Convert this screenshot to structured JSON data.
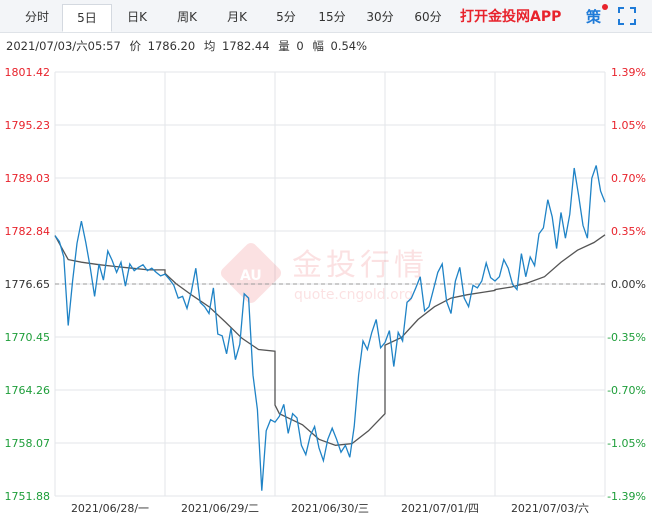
{
  "tabs": [
    {
      "label": "分时"
    },
    {
      "label": "5日"
    },
    {
      "label": "日K"
    },
    {
      "label": "周K"
    },
    {
      "label": "月K"
    },
    {
      "label": "5分"
    },
    {
      "label": "15分"
    },
    {
      "label": "30分"
    },
    {
      "label": "60分"
    }
  ],
  "app_link": "打开金投网APP",
  "strategy_label": "策",
  "info": {
    "datetime": "2021/07/03/六05:57",
    "price_label": "价",
    "price": "1786.20",
    "avg_label": "均",
    "avg": "1782.44",
    "volume_label": "量",
    "volume": "0",
    "change_label": "幅",
    "change": "0.54%"
  },
  "watermark": {
    "brand": "金投行情",
    "url": "quote.cngold.org"
  },
  "colors": {
    "price_line": "#1f83c6",
    "avg_line": "#555555",
    "up": "#e8232c",
    "down": "#1e9e3a",
    "grid": "#e3e6ea"
  },
  "chart_data": {
    "type": "line",
    "title": "",
    "xlabel": "",
    "ylabel": "",
    "prev_close": 1776.65,
    "ylim": [
      1751.88,
      1801.42
    ],
    "yticks_left": [
      "1801.42",
      "1795.23",
      "1789.03",
      "1782.84",
      "1776.65",
      "1770.45",
      "1764.26",
      "1758.07",
      "1751.88"
    ],
    "yticks_right": [
      "1.39%",
      "1.05%",
      "0.70%",
      "0.35%",
      "0.00%",
      "-0.35%",
      "-0.70%",
      "-1.05%",
      "-1.39%"
    ],
    "categories": [
      "2021/06/28/一",
      "2021/06/29/二",
      "2021/06/30/三",
      "2021/07/01/四",
      "2021/07/03/六"
    ],
    "grid": true,
    "series": [
      {
        "key": "price",
        "x": [
          0,
          0.04,
          0.08,
          0.12,
          0.16,
          0.2,
          0.24,
          0.28,
          0.32,
          0.36,
          0.4,
          0.44,
          0.48,
          0.52,
          0.56,
          0.6,
          0.64,
          0.68,
          0.72,
          0.76,
          0.8,
          0.84,
          0.88,
          0.92,
          0.96,
          1.0,
          1.0,
          1.04,
          1.08,
          1.12,
          1.16,
          1.2,
          1.24,
          1.28,
          1.32,
          1.36,
          1.4,
          1.44,
          1.48,
          1.52,
          1.56,
          1.6,
          1.64,
          1.68,
          1.72,
          1.76,
          1.8,
          1.84,
          1.88,
          1.92,
          1.96,
          2.0,
          2.0,
          2.04,
          2.08,
          2.12,
          2.16,
          2.2,
          2.24,
          2.28,
          2.32,
          2.36,
          2.4,
          2.44,
          2.48,
          2.52,
          2.56,
          2.6,
          2.64,
          2.68,
          2.72,
          2.76,
          2.8,
          2.84,
          2.88,
          2.92,
          2.96,
          3.0,
          3.0,
          3.04,
          3.08,
          3.12,
          3.16,
          3.2,
          3.24,
          3.28,
          3.32,
          3.36,
          3.4,
          3.44,
          3.48,
          3.52,
          3.56,
          3.6,
          3.64,
          3.68,
          3.72,
          3.76,
          3.8,
          3.84,
          3.88,
          3.92,
          3.96,
          4.0,
          4.0,
          4.04,
          4.08,
          4.12,
          4.16,
          4.2,
          4.24,
          4.28,
          4.32,
          4.36,
          4.4,
          4.44,
          4.48,
          4.52,
          4.56,
          4.6,
          4.64,
          4.68,
          4.72,
          4.76,
          4.8,
          4.84,
          4.88,
          4.92,
          4.96,
          5.0
        ],
        "y": [
          1782.3,
          1781.6,
          1779.8,
          1771.8,
          1777.0,
          1781.4,
          1784.0,
          1781.5,
          1778.6,
          1775.2,
          1779.0,
          1777.1,
          1780.5,
          1779.4,
          1778.0,
          1779.2,
          1776.4,
          1779.0,
          1778.2,
          1778.6,
          1778.9,
          1778.2,
          1778.5,
          1778.0,
          1777.6,
          1777.8,
          1777.8,
          1777.2,
          1776.5,
          1775.0,
          1775.2,
          1773.8,
          1775.8,
          1778.5,
          1774.5,
          1774.0,
          1773.2,
          1776.2,
          1770.8,
          1770.6,
          1768.5,
          1771.5,
          1767.8,
          1769.6,
          1775.5,
          1775.0,
          1766.0,
          1762.0,
          1752.5,
          1759.5,
          1760.8,
          1760.5,
          1760.5,
          1761.2,
          1762.6,
          1759.2,
          1761.5,
          1761.0,
          1757.8,
          1756.7,
          1758.9,
          1760.0,
          1757.5,
          1756.0,
          1758.5,
          1759.8,
          1758.5,
          1757.0,
          1757.8,
          1756.4,
          1760.0,
          1766.0,
          1770.0,
          1769.0,
          1771.0,
          1772.5,
          1769.2,
          1769.8,
          1769.8,
          1771.2,
          1767.0,
          1771.0,
          1770.0,
          1774.5,
          1775.0,
          1776.2,
          1777.5,
          1773.5,
          1774.0,
          1776.0,
          1778.0,
          1779.0,
          1774.6,
          1773.2,
          1777.0,
          1778.6,
          1775.0,
          1774.0,
          1776.5,
          1776.2,
          1777.0,
          1779.1,
          1777.4,
          1777.0,
          1777.0,
          1777.5,
          1779.5,
          1778.5,
          1776.6,
          1776.0,
          1780.2,
          1777.5,
          1779.8,
          1778.8,
          1782.5,
          1783.2,
          1786.5,
          1784.5,
          1780.8,
          1785.0,
          1782.0,
          1784.8,
          1790.2,
          1787.0,
          1783.5,
          1782.0,
          1789.0,
          1790.5,
          1787.5,
          1786.2
        ]
      },
      {
        "key": "average",
        "x": [
          0,
          0.12,
          0.24,
          0.4,
          0.55,
          0.7,
          0.85,
          1.0,
          1.0,
          1.1,
          1.25,
          1.4,
          1.55,
          1.7,
          1.85,
          2.0,
          2.0,
          2.04,
          2.12,
          2.25,
          2.4,
          2.55,
          2.7,
          2.85,
          3.0,
          3.0,
          3.15,
          3.3,
          3.45,
          3.6,
          3.75,
          3.9,
          4.0,
          4.0,
          4.15,
          4.3,
          4.45,
          4.6,
          4.75,
          4.9,
          5.0
        ],
        "y": [
          1782.3,
          1779.5,
          1779.2,
          1778.9,
          1778.7,
          1778.5,
          1778.3,
          1778.3,
          1777.9,
          1776.7,
          1775.3,
          1774.0,
          1772.2,
          1770.3,
          1769.0,
          1768.8,
          1762.5,
          1761.5,
          1761.0,
          1760.2,
          1758.5,
          1757.8,
          1758.0,
          1759.5,
          1761.5,
          1769.5,
          1770.4,
          1772.5,
          1774.0,
          1775.0,
          1775.4,
          1775.7,
          1775.9,
          1776.0,
          1776.3,
          1776.8,
          1777.5,
          1779.2,
          1780.6,
          1781.5,
          1782.4
        ]
      }
    ]
  }
}
